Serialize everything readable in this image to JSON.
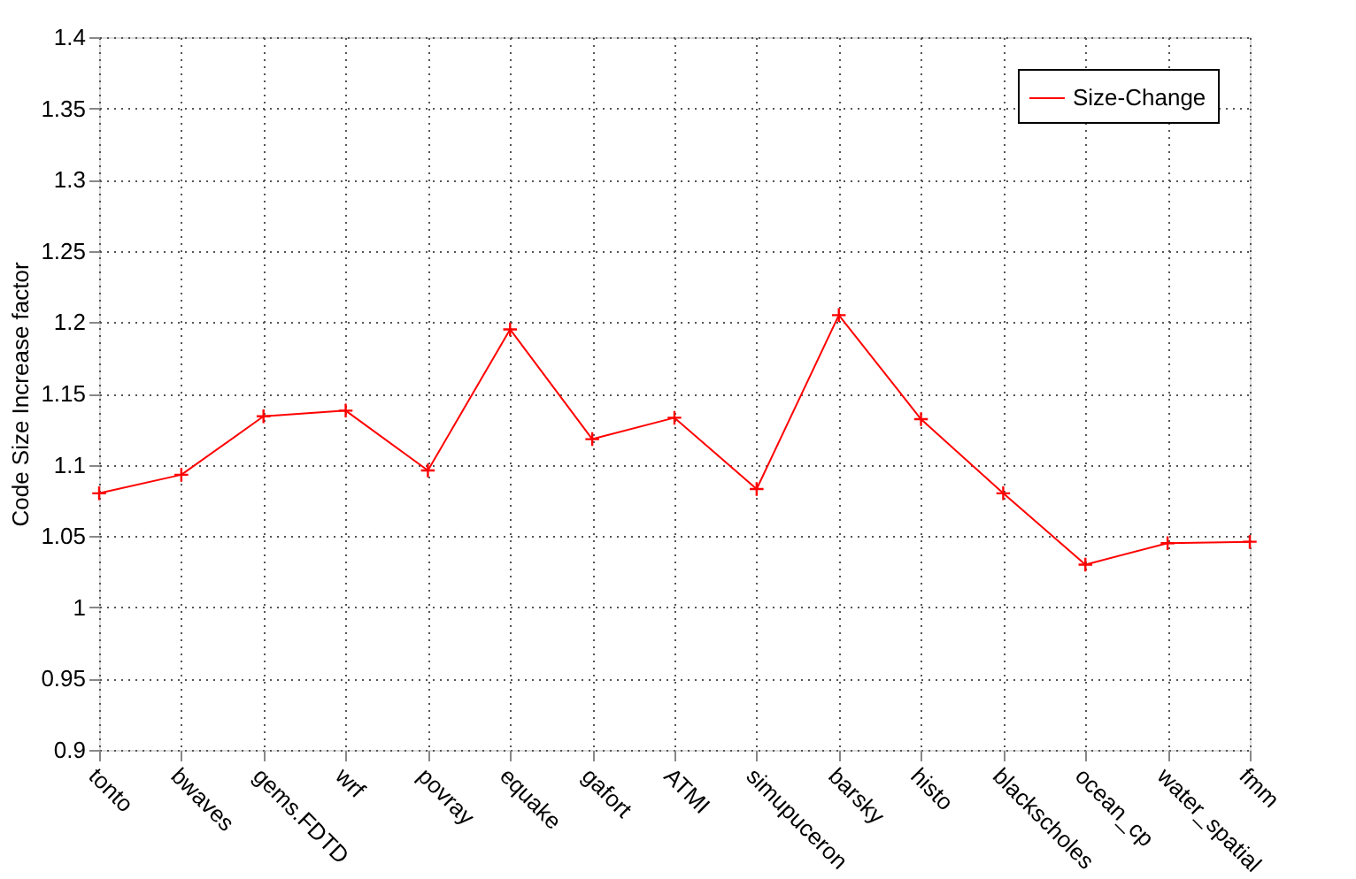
{
  "chart_data": {
    "type": "line",
    "ylabel": "Code Size Increase factor",
    "categories": [
      "tonto",
      "bwaves",
      "gems.FDTD",
      "wrf",
      "povray",
      "equake",
      "gafort",
      "ATMI",
      "simupuceron",
      "barsky",
      "histo",
      "blackscholes",
      "ocean_cp",
      "water_spatial",
      "fmm"
    ],
    "series": [
      {
        "name": "Size-Change",
        "color": "#ff0000",
        "values": [
          1.08,
          1.093,
          1.134,
          1.138,
          1.096,
          1.195,
          1.118,
          1.133,
          1.083,
          1.205,
          1.132,
          1.08,
          1.03,
          1.045,
          1.046
        ]
      }
    ],
    "ylim": [
      0.9,
      1.4
    ],
    "yticks": [
      0.9,
      0.95,
      1,
      1.05,
      1.1,
      1.15,
      1.2,
      1.25,
      1.3,
      1.35,
      1.4
    ],
    "grid": true,
    "legend": "top right",
    "marker": "cross",
    "line_style": "solid"
  }
}
